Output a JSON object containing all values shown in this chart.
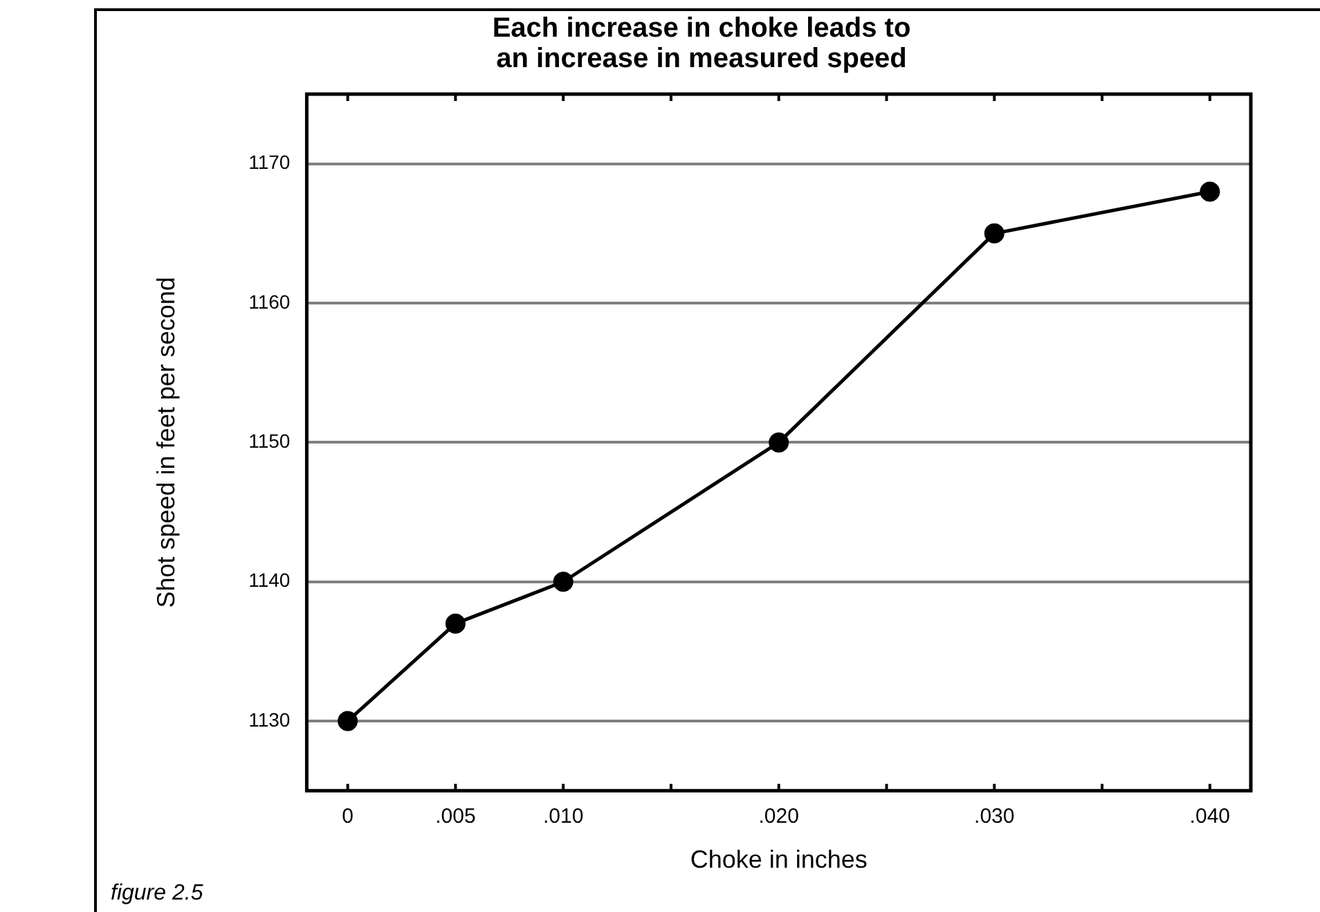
{
  "chart_data": {
    "type": "line",
    "title": "Each increase in choke leads to\nan increase in measured speed",
    "xlabel": "Choke in inches",
    "ylabel": "Shot speed in feet per second",
    "x": [
      0,
      0.005,
      0.01,
      0.02,
      0.03,
      0.04
    ],
    "series": [
      {
        "color": "#000000",
        "values": [
          1130,
          1137,
          1140,
          1150,
          1165,
          1168
        ]
      }
    ],
    "xlim": [
      -0.0019,
      0.0419
    ],
    "xticks": [
      0,
      {
        "value": 0.005,
        "label": ".005"
      },
      {
        "value": 0.01,
        "label": ".010"
      },
      {
        "value": 0.015,
        "label": null
      },
      {
        "value": 0.02,
        "label": ".020"
      },
      {
        "value": 0.025,
        "label": null
      },
      {
        "value": 0.03,
        "label": ".030"
      },
      {
        "value": 0.035,
        "label": null
      },
      {
        "value": 0.04,
        "label": ".040"
      }
    ],
    "ylim": [
      1125,
      1175
    ],
    "yticks": [
      1130,
      1140,
      1150,
      1160,
      1170
    ],
    "grid": "y",
    "legend": false,
    "marker": "circle",
    "line_style": "solid",
    "annotations": [
      "figure 2.5"
    ]
  }
}
